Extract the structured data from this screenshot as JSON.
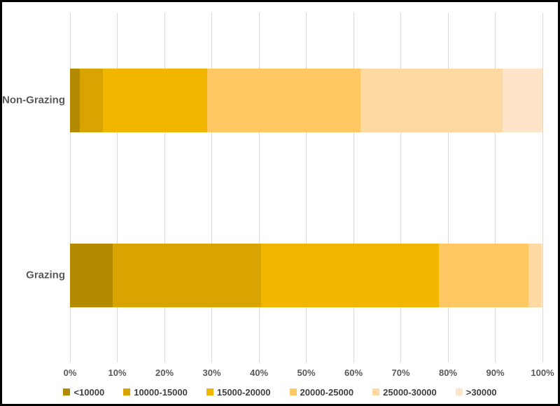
{
  "chart_data": {
    "type": "bar",
    "orientation": "horizontal",
    "stacked": true,
    "title": "",
    "xlabel": "",
    "ylabel": "",
    "xlim": [
      0,
      100
    ],
    "grid": true,
    "legend_position": "bottom",
    "categories": [
      "Non-Grazing",
      "Grazing"
    ],
    "series": [
      {
        "name": "<10000",
        "color": "#B48A00",
        "values": [
          2,
          9
        ]
      },
      {
        "name": "10000-15000",
        "color": "#DAA400",
        "values": [
          5,
          31.5
        ]
      },
      {
        "name": "15000-20000",
        "color": "#F2B600",
        "values": [
          22,
          37.5
        ]
      },
      {
        "name": "20000-25000",
        "color": "#FFC862",
        "values": [
          32.5,
          19
        ]
      },
      {
        "name": "25000-30000",
        "color": "#FED9A2",
        "values": [
          30,
          2.7
        ]
      },
      {
        "name": ">30000",
        "color": "#FEE5C8",
        "values": [
          8.5,
          0.3
        ]
      }
    ],
    "x_ticks": [
      "0%",
      "10%",
      "20%",
      "30%",
      "40%",
      "50%",
      "60%",
      "70%",
      "80%",
      "90%",
      "100%"
    ]
  },
  "style": {
    "frame_border_color": "#000000",
    "background_color": "#FFFFFF",
    "gridline_color": "#D9D9D9",
    "axis_text_color": "#595959",
    "legend_text_color": "#404040"
  }
}
